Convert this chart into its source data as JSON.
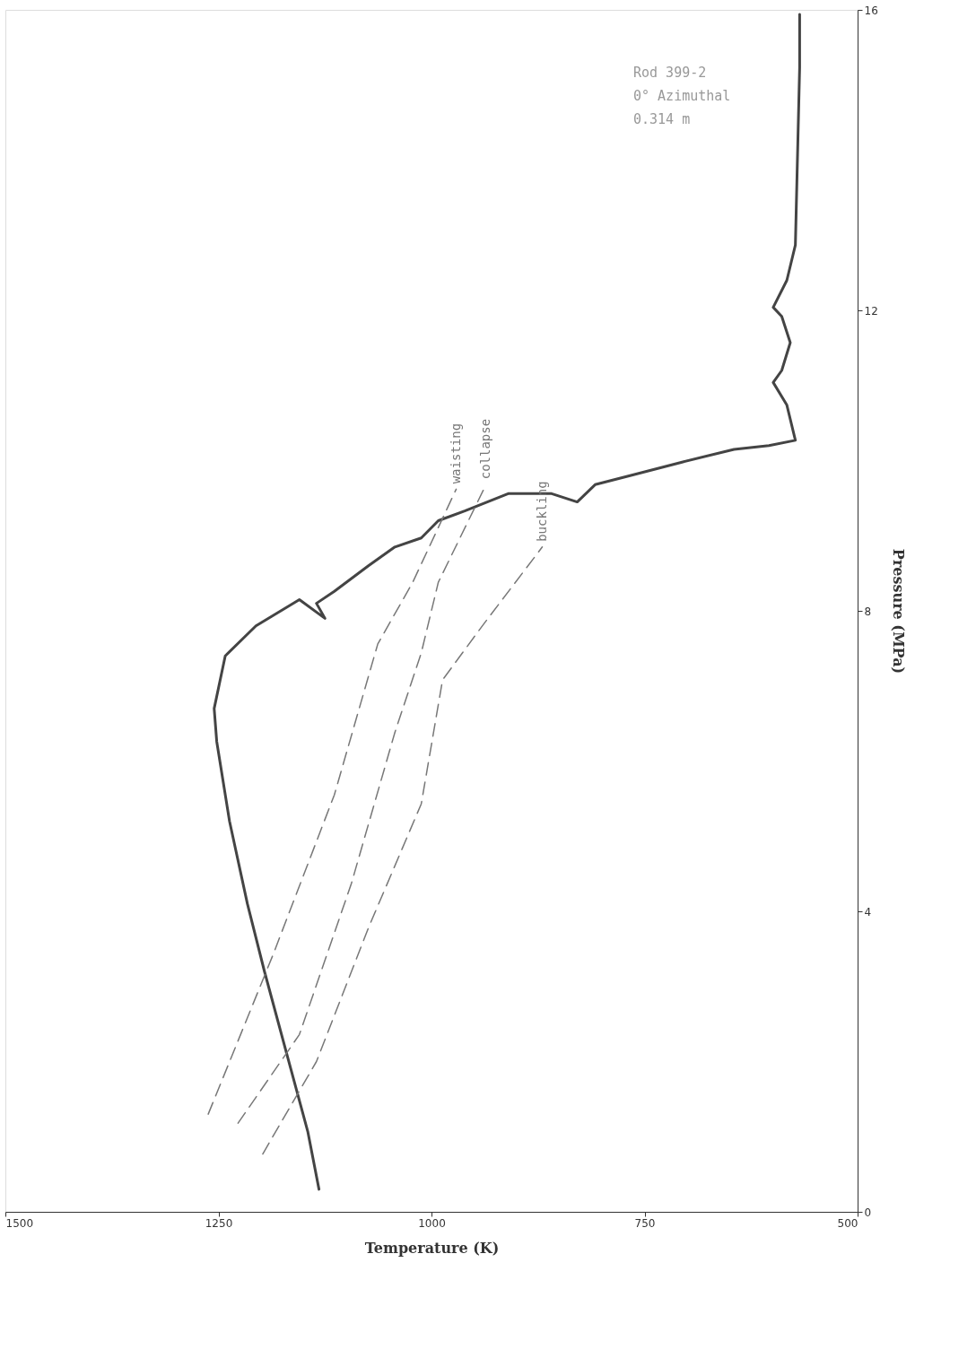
{
  "chart_data": {
    "type": "line",
    "xlabel": "Temperature (K)",
    "ylabel": "Pressure (MPa)",
    "xlim": [
      1500,
      500
    ],
    "xticks": [
      1500,
      1250,
      1000,
      750,
      500
    ],
    "ylim": [
      0,
      16
    ],
    "yticks": [
      0,
      4,
      8,
      12,
      16
    ],
    "grid": false,
    "annotations": [
      "Rod 399-2",
      "0° Azimuthal",
      "0.314 m"
    ],
    "series": [
      {
        "color": "#444444",
        "line_style": "solid",
        "x": [
          1132,
          1145,
          1165,
          1196,
          1216,
          1237,
          1252,
          1255,
          1242,
          1206,
          1155,
          1125,
          1135,
          1114,
          1074,
          1043,
          1012,
          992,
          961,
          910,
          859,
          829,
          808,
          767,
          706,
          645,
          604,
          573,
          583,
          599,
          589,
          579,
          589,
          599,
          583,
          573,
          568,
          568
        ],
        "values": [
          0.3,
          1.06,
          1.9,
          3.2,
          4.1,
          5.2,
          6.26,
          6.7,
          7.4,
          7.8,
          8.15,
          7.9,
          8.1,
          8.26,
          8.6,
          8.85,
          8.97,
          9.2,
          9.33,
          9.56,
          9.56,
          9.45,
          9.68,
          9.8,
          9.98,
          10.15,
          10.2,
          10.27,
          10.74,
          11.04,
          11.2,
          11.57,
          11.92,
          12.04,
          12.4,
          12.87,
          15.23,
          15.94
        ]
      },
      {
        "name": "waisting",
        "color": "#777777",
        "line_style": "dashed",
        "x": [
          1262,
          1186,
          1114,
          1063,
          1022,
          971
        ],
        "values": [
          1.3,
          3.42,
          5.55,
          7.56,
          8.38,
          9.62
        ]
      },
      {
        "name": "collapse",
        "color": "#777777",
        "line_style": "dashed",
        "x": [
          1227,
          1155,
          1094,
          1043,
          1012,
          992,
          936
        ],
        "values": [
          1.18,
          2.36,
          4.37,
          6.38,
          7.44,
          8.38,
          9.68
        ]
      },
      {
        "name": "buckling",
        "color": "#777777",
        "line_style": "dashed",
        "x": [
          1198,
          1135,
          1074,
          1012,
          987,
          941,
          870
        ],
        "values": [
          0.77,
          2.0,
          3.78,
          5.43,
          7.08,
          7.79,
          8.85
        ]
      }
    ]
  }
}
